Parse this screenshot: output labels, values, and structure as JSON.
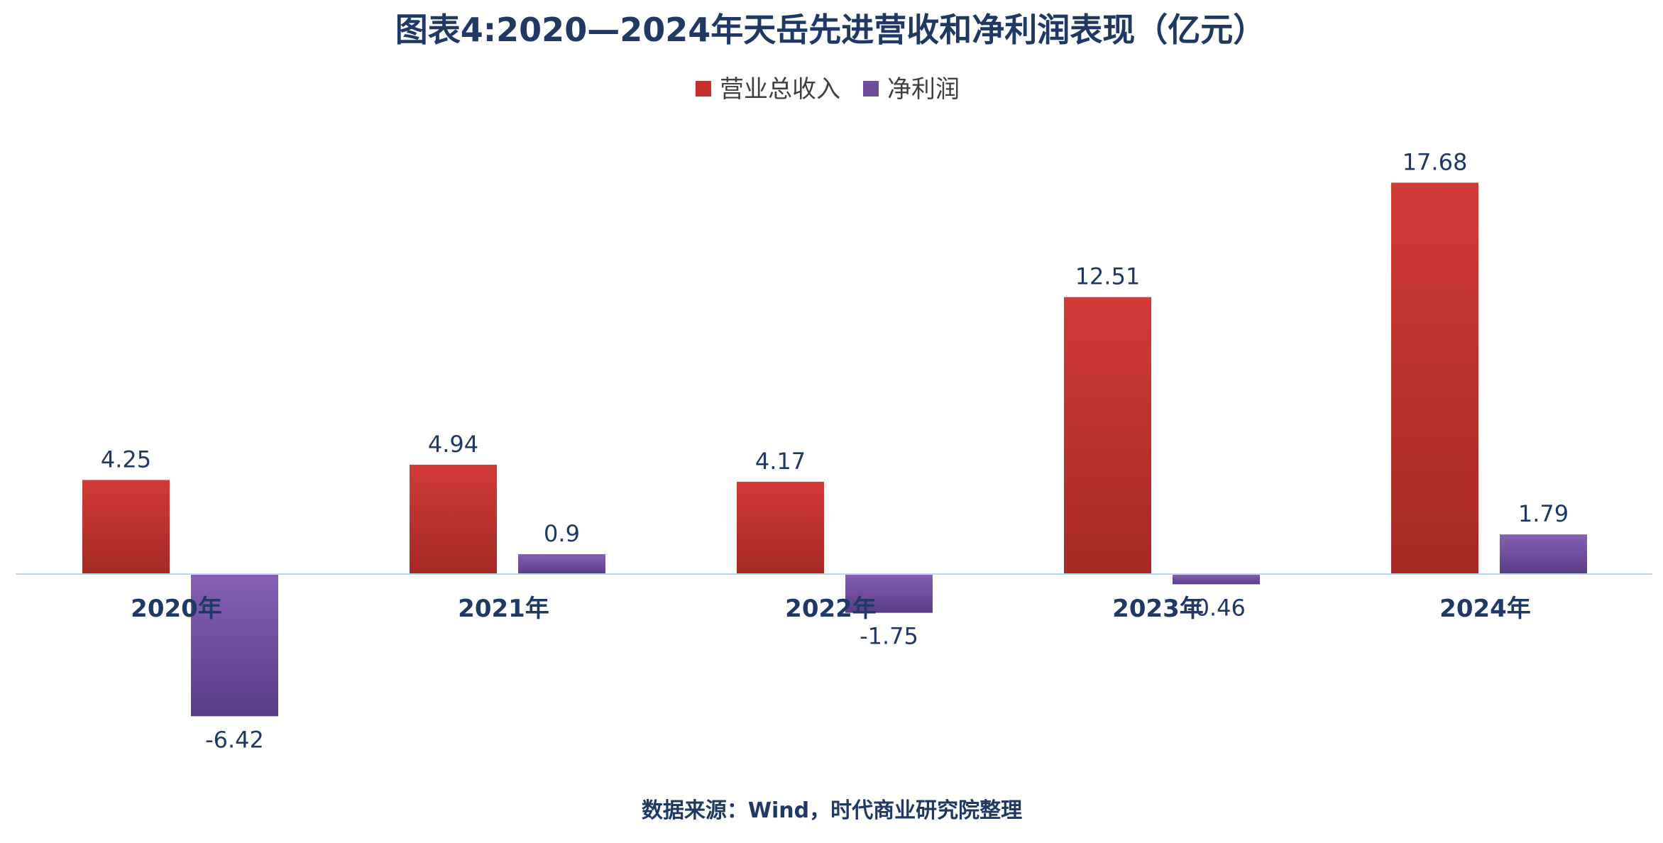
{
  "chart_data": {
    "type": "bar",
    "title": "图表4:2020—2024年天岳先进营收和净利润表现（亿元）",
    "categories": [
      "2020年",
      "2021年",
      "2022年",
      "2023年",
      "2024年"
    ],
    "series": [
      {
        "name": "营业总收入",
        "color": "#C8302E",
        "values": [
          4.25,
          4.94,
          4.17,
          12.51,
          17.68
        ]
      },
      {
        "name": "净利润",
        "color": "#6E4C9A",
        "values": [
          -6.42,
          0.9,
          -1.75,
          -0.46,
          1.79
        ]
      }
    ],
    "data_labels": [
      [
        "4.25",
        "4.94",
        "4.17",
        "12.51",
        "17.68"
      ],
      [
        "-6.42",
        "0.9",
        "-1.75",
        "-0.46",
        "1.79"
      ]
    ],
    "ylim": [
      -9,
      20
    ],
    "grid": false,
    "legend_position": "top"
  },
  "source": "数据来源：Wind，时代商业研究院整理"
}
